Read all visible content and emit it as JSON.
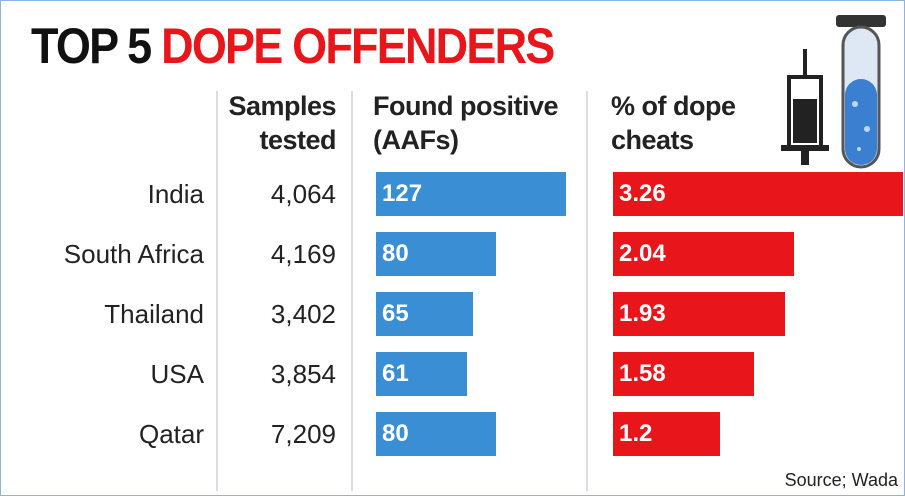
{
  "chart_data": {
    "type": "bar",
    "title": {
      "lead": "TOP 5",
      "main": "DOPE OFFENDERS"
    },
    "categories": [
      "India",
      "South Africa",
      "Thailand",
      "USA",
      "Qatar"
    ],
    "samples_tested": {
      "header": "Samples tested",
      "values": [
        "4,064",
        "4,169",
        "3,402",
        "3,854",
        "7,209"
      ]
    },
    "series": [
      {
        "name": "Found positive (AAFs)",
        "color": "#3a8fd4",
        "values": [
          127,
          80,
          65,
          61,
          80
        ]
      },
      {
        "name": "% of dope cheats",
        "color": "#e8151b",
        "values": [
          3.26,
          2.04,
          1.93,
          1.58,
          1.2
        ]
      }
    ],
    "source": "Source; Wada"
  }
}
